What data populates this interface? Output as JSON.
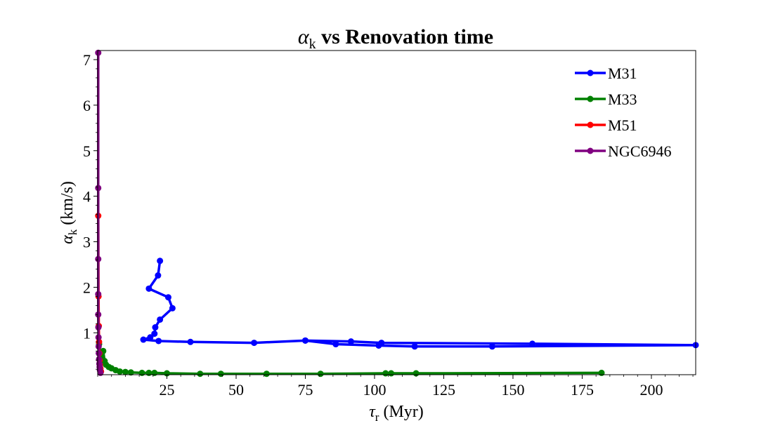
{
  "chart_data": {
    "type": "line",
    "title": {
      "symbol": "α",
      "sub": "k",
      "rest": " vs Renovation time"
    },
    "xlabel": {
      "symbol": "τ",
      "sub": "r",
      "rest": " (Myr)"
    },
    "ylabel": {
      "symbol": "α",
      "sub": "k",
      "rest": " (km/s)"
    },
    "xlim": [
      0,
      216
    ],
    "ylim": [
      0.08,
      7.2
    ],
    "x_ticks": [
      25,
      50,
      75,
      100,
      125,
      150,
      175,
      200
    ],
    "y_ticks": [
      1,
      2,
      3,
      4,
      5,
      6,
      7
    ],
    "grid": false,
    "legend_position": "top-right",
    "series": [
      {
        "name": "M31",
        "color": "#0000ff",
        "points": [
          [
            22.5,
            2.58
          ],
          [
            21.8,
            2.26
          ],
          [
            18.5,
            1.97
          ],
          [
            25.5,
            1.78
          ],
          [
            27.0,
            1.54
          ],
          [
            22.5,
            1.29
          ],
          [
            20.8,
            1.12
          ],
          [
            20.5,
            0.98
          ],
          [
            19.0,
            0.9
          ],
          [
            16.5,
            0.85
          ],
          [
            22.0,
            0.82
          ],
          [
            33.5,
            0.8
          ],
          [
            56.5,
            0.78
          ],
          [
            75.0,
            0.83
          ],
          [
            91.5,
            0.81
          ],
          [
            102.5,
            0.78
          ],
          [
            157.0,
            0.76
          ],
          [
            216.0,
            0.73
          ],
          [
            142.5,
            0.7
          ],
          [
            114.5,
            0.7
          ],
          [
            101.5,
            0.72
          ],
          [
            86.0,
            0.75
          ],
          [
            75.0,
            0.83
          ]
        ]
      },
      {
        "name": "M33",
        "color": "#008000",
        "points": [
          [
            0.5,
            0.75
          ],
          [
            1.0,
            0.55
          ],
          [
            1.5,
            0.45
          ],
          [
            2.0,
            0.6
          ],
          [
            2.5,
            0.38
          ],
          [
            3.0,
            0.3
          ],
          [
            4.0,
            0.25
          ],
          [
            5.0,
            0.22
          ],
          [
            6.5,
            0.18
          ],
          [
            8.0,
            0.15
          ],
          [
            10.0,
            0.14
          ],
          [
            12.0,
            0.13
          ],
          [
            16.0,
            0.12
          ],
          [
            18.5,
            0.12
          ],
          [
            20.5,
            0.12
          ],
          [
            25.0,
            0.11
          ],
          [
            37.0,
            0.1
          ],
          [
            44.5,
            0.1
          ],
          [
            61.0,
            0.1
          ],
          [
            80.5,
            0.1
          ],
          [
            104.0,
            0.11
          ],
          [
            106.0,
            0.11
          ],
          [
            115.0,
            0.11
          ],
          [
            182.0,
            0.12
          ]
        ]
      },
      {
        "name": "M51",
        "color": "#ff0000",
        "points": [
          [
            0.2,
            3.57
          ],
          [
            0.3,
            1.8
          ],
          [
            0.4,
            1.15
          ],
          [
            0.5,
            0.8
          ],
          [
            0.6,
            0.55
          ],
          [
            0.7,
            0.4
          ],
          [
            0.8,
            0.3
          ],
          [
            1.0,
            0.22
          ],
          [
            1.2,
            0.15
          ]
        ]
      },
      {
        "name": "NGC6946",
        "color": "#800080",
        "points": [
          [
            0.2,
            7.15
          ],
          [
            0.2,
            4.18
          ],
          [
            0.2,
            2.62
          ],
          [
            0.2,
            1.85
          ],
          [
            0.2,
            1.4
          ],
          [
            0.25,
            1.12
          ],
          [
            0.3,
            0.9
          ],
          [
            0.35,
            0.7
          ],
          [
            0.4,
            0.55
          ],
          [
            0.5,
            0.42
          ],
          [
            0.6,
            0.32
          ],
          [
            0.7,
            0.25
          ],
          [
            0.8,
            0.18
          ],
          [
            1.0,
            0.12
          ]
        ]
      }
    ]
  }
}
